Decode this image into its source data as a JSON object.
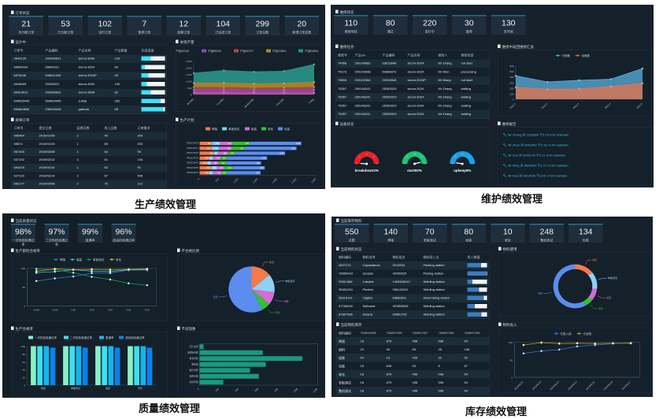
{
  "captions": {
    "production": "生产绩效管理",
    "maintenance": "维护绩效管理",
    "quality": "质量绩效管理",
    "inventory": "库存绩效管理"
  },
  "production": {
    "kpi_title": "订单状态",
    "kpis": [
      {
        "value": "21",
        "label": "未分配订单"
      },
      {
        "value": "53",
        "label": "已分配订单"
      },
      {
        "value": "102",
        "label": "进行订单"
      },
      {
        "value": "7",
        "label": "暂停订单"
      },
      {
        "value": "12",
        "label": "延期订单"
      },
      {
        "value": "104",
        "label": "已完成订单"
      },
      {
        "value": "299",
        "label": "订单总数"
      },
      {
        "value": "20",
        "label": "新增订单总数"
      }
    ],
    "design": {
      "title": "设计中",
      "columns": [
        "订单号",
        "产品编码",
        "产品名称",
        "产品数量",
        "完成进度"
      ],
      "rows": [
        [
          "3644125",
          "200045641",
          "sicmo-3000",
          "100"
        ],
        [
          "65646434",
          "65644221",
          "sicmo-3024",
          "60"
        ],
        [
          "6575446",
          "546541454",
          "sicmo-3024P",
          "40"
        ],
        [
          "6646565",
          "20036521",
          "sicmo-3000",
          "150"
        ],
        [
          "66423612",
          "200365632",
          "sicmo-3008",
          "82"
        ],
        [
          "645665445",
          "654654465",
          "sulthji",
          "362"
        ],
        [
          "654664654",
          "235445445",
          "gatsvds",
          "65"
        ]
      ],
      "progress": [
        0.4,
        0.15,
        0.3,
        0.23,
        0.4,
        0.82,
        0.93
      ]
    },
    "pending": {
      "title": "即将订单",
      "columns": [
        "订单号",
        "提交日期",
        "延期天数",
        "线上品数",
        "订单需求"
      ],
      "rows": [
        [
          "565464",
          "2019/01/05",
          "2",
          "40",
          "200"
        ],
        [
          "65674",
          "2019/01/23",
          "1",
          "65",
          "200"
        ],
        [
          "567445",
          "2019/02/08",
          "1",
          "64",
          "90"
        ],
        [
          "637192",
          "2019/02/12",
          "3",
          "61",
          "154"
        ],
        [
          "654478",
          "2019/01/24",
          "1",
          "62",
          "91"
        ],
        [
          "627192",
          "2019/02/14",
          "2",
          "67",
          "546"
        ],
        [
          "692177",
          "2019/02/08",
          "2",
          "75",
          "113"
        ]
      ]
    },
    "weekly_title": "本周产量",
    "plan_title": "生产计划"
  },
  "maintenance": {
    "kpi_title": "维修状态",
    "kpis": [
      {
        "value": "110",
        "label": "维修项目"
      },
      {
        "value": "80",
        "label": "通过"
      },
      {
        "value": "220",
        "label": "进行中"
      },
      {
        "value": "30",
        "label": "暂停"
      },
      {
        "value": "130",
        "label": "未开始"
      }
    ],
    "tasks": {
      "title": "维修任务",
      "columns": [
        "维修号",
        "产品SN",
        "产品编码",
        "产品名称",
        "维修人",
        "维修状态"
      ],
      "rows": [
        [
          "74068",
          "200149682",
          "63015848",
          "sicom-3024",
          "Mr Zhang",
          "not start"
        ],
        [
          "75173",
          "200143698",
          "64898970",
          "sicom-3024",
          "Mr Wen",
          "processing"
        ],
        [
          "75694",
          "200102364",
          "20315848",
          "sicom-3024P",
          "Mr Wang",
          "not start"
        ],
        [
          "75357",
          "200146241",
          "2526302X",
          "sicom-3024",
          "Mr Zhang",
          "waiting"
        ],
        [
          "75357",
          "200146241",
          "2526302X",
          "sicom-3024",
          "Mr Zhang",
          "waiting"
        ],
        [
          "75357",
          "200146241",
          "2526302X",
          "sicom-3024",
          "Mr Zhang",
          "waiting"
        ],
        [
          "75357",
          "200146241",
          "2526302X",
          "sicom-3024",
          "Mr Zhang",
          "waiting"
        ]
      ]
    },
    "trend_title": "维修中返回维修汇总",
    "equipment_title": "设备状态",
    "report": {
      "title": "维修报告",
      "items": [
        "Mr Zhang 对 2315684 于2.15 9:00 maintain",
        "Mr Zhao 对 6901462 于2.18 11:00 maintain",
        "Mr Sun 对 3026178 于2.21 8:00 maintain",
        "Mr Ming 对 5604623 于2.27 13:00 maintain",
        "Mr Dao 对 3612036 于3.09 17:00 maintain"
      ]
    }
  },
  "quality": {
    "kpi_title": "当前质量状态",
    "kpis": [
      {
        "value": "98%",
        "label": "一次性检验通过率"
      },
      {
        "value": "97%",
        "label": "二次性检验通过率"
      },
      {
        "value": "99%",
        "label": "直通率"
      },
      {
        "value": "96%",
        "label": "成品检验通过率"
      }
    ],
    "line_title": "生产部检合格率",
    "pie_title": "不合格比例",
    "bar_title": "生产合格率",
    "defect_title": "不良现象"
  },
  "inventory": {
    "kpi_title": "当前库存物料",
    "kpis": [
      {
        "value": "550",
        "label": "总数"
      },
      {
        "value": "140",
        "label": "焊接"
      },
      {
        "value": "70",
        "label": "单板测试"
      },
      {
        "value": "80",
        "label": "组装"
      },
      {
        "value": "10",
        "label": "老化"
      },
      {
        "value": "248",
        "label": "整机测试"
      },
      {
        "value": "134",
        "label": "包装"
      }
    ],
    "status": {
      "title": "当前物料状态",
      "columns": [
        "物料编码",
        "物料名称",
        "物料批次",
        "物料投入点",
        "投入数量"
      ],
      "rows": [
        [
          "3607274",
          "Capacitance",
          "3213434",
          "Packing station"
        ],
        [
          "76650443",
          "Sodadc",
          "45789525",
          "Picking station"
        ],
        [
          "32611566",
          "Lotsdds",
          "1463406412",
          "Welding station"
        ],
        [
          "35451254",
          "Pindest",
          "356145112",
          "Welding station"
        ],
        [
          "56315141",
          "Tjdjdso",
          "63689511",
          "Assembling station"
        ],
        [
          "67768246",
          "Sdfmsed",
          "457856525",
          "Welding station"
        ],
        [
          "87867586",
          "Solada",
          "54560725",
          "Welding station"
        ]
      ],
      "progress": [
        0.7,
        0.97,
        0.25,
        0.6,
        0.84,
        0.38,
        0.72
      ]
    },
    "stock": {
      "title": "当前物料库存",
      "columns": [
        "物料编码",
        "784845458",
        "784887455",
        "784847457",
        "784887456",
        "784887455"
      ],
      "rows": [
        [
          "焊接",
          "18",
          "875",
          "458",
          "598",
          "54"
        ],
        [
          "组料",
          "23",
          "45",
          "65",
          "35",
          "108"
        ],
        [
          "组装",
          "54",
          "23",
          "428",
          "32",
          "52"
        ],
        [
          "包装",
          "23",
          "845",
          "43",
          "8",
          "87"
        ],
        [
          "老化",
          "18",
          "875",
          "458",
          "598",
          "54"
        ],
        [
          "单板测试",
          "18",
          "875",
          "458",
          "598",
          "54"
        ],
        [
          "整机测试",
          "18",
          "875",
          "458",
          "598",
          "54"
        ]
      ]
    },
    "usage_title": "物料使用",
    "input_title": "物料投入"
  },
  "colors": {
    "panel_bg": "#16212c",
    "card_bg": "#1f2e3d",
    "card_accent": "#2a6c8e",
    "progress_cyan": "#3fe0f5",
    "progress_blue": "#3b7cc0"
  },
  "chart_data": [
    {
      "type": "area",
      "stacked": true,
      "categories": [
        "Monday",
        "Tuesday",
        "Wednesday",
        "Thursday",
        "Friday"
      ],
      "ylim": [
        0,
        2500
      ],
      "yticks": [
        "0",
        "500",
        "1,000",
        "1,500",
        "2,000",
        "2,500"
      ],
      "legend": "top",
      "series": [
        {
          "name": "产品A0120",
          "color": "#c2509a",
          "values": [
            150,
            160,
            140,
            150,
            130
          ]
        },
        {
          "name": "产品B0203",
          "color": "#8a4cb0",
          "values": [
            200,
            200,
            180,
            190,
            220
          ]
        },
        {
          "name": "产品A0707",
          "color": "#b04a45",
          "values": [
            200,
            180,
            170,
            180,
            200
          ]
        },
        {
          "name": "产品C0604",
          "color": "#a88a28",
          "values": [
            300,
            330,
            310,
            320,
            380
          ]
        },
        {
          "name": "产品D0604",
          "color": "#2a8f86",
          "values": [
            750,
            930,
            900,
            910,
            1320
          ]
        }
      ]
    },
    {
      "type": "bar",
      "orientation": "horizontal",
      "stacked": true,
      "categories": [
        "PM0124670",
        "PM0124671",
        "PM0124672",
        "PM0124673",
        "PM0124674",
        "PM0124675",
        "PM0124676"
      ],
      "xlim": [
        0,
        3000
      ],
      "xticks": [
        "0",
        "500",
        "1,000",
        "1,500",
        "2,000",
        "2,500",
        "3,000"
      ],
      "legend": "top",
      "series": [
        {
          "name": "焊接",
          "color": "#f47a4a",
          "values": [
            320,
            300,
            380,
            250,
            200,
            301,
            249
          ]
        },
        {
          "name": "单板测试",
          "color": "#7ecbf4",
          "values": [
            210,
            200,
            100,
            100,
            100,
            152,
            100
          ]
        },
        {
          "name": "组装",
          "color": "#d66ad6",
          "values": [
            310,
            330,
            250,
            200,
            180,
            182,
            225
          ]
        },
        {
          "name": "老化",
          "color": "#2ec42e",
          "values": [
            455,
            330,
            180,
            154,
            201,
            212,
            126
          ]
        },
        {
          "name": "包装",
          "color": "#5b8def",
          "values": [
            1326,
            1336,
            1290,
            1034,
            900,
            830,
            870
          ]
        }
      ]
    },
    {
      "type": "area",
      "stacked": false,
      "categories": [
        "2019-1",
        "2019-2",
        "2019-3",
        "2019-4",
        "2019-5"
      ],
      "ylim": [
        0,
        600
      ],
      "yticks": [
        "0",
        "100",
        "200",
        "300",
        "400",
        "500",
        "600"
      ],
      "legend": "top",
      "series": [
        {
          "name": "已修数",
          "color": "#5ab0e0",
          "values": [
            420,
            310,
            340,
            360,
            550
          ]
        },
        {
          "name": "待修数",
          "color": "#e8734a",
          "values": [
            215,
            180,
            185,
            230,
            285
          ]
        }
      ]
    },
    {
      "type": "gauge",
      "gauges": [
        {
          "label": "breakdown2%",
          "value": 2,
          "color": "#e8202a"
        },
        {
          "label": "start92%",
          "value": 92,
          "color": "#1ec472"
        },
        {
          "label": "upkeep5%",
          "value": 5,
          "color": "#1aa0e8"
        }
      ]
    },
    {
      "type": "line",
      "categories": [
        "10:00",
        "11:00",
        "1:00",
        "2:00",
        "3:00",
        "4:00",
        "5:00"
      ],
      "ylim": [
        0,
        100
      ],
      "yticks": [
        "0",
        "50",
        "100"
      ],
      "legend": "top",
      "series": [
        {
          "name": "焊接",
          "color": "#2f86d8",
          "values": [
            66,
            73,
            78,
            87,
            87,
            95,
            95
          ]
        },
        {
          "name": "组装",
          "color": "#35c6f0",
          "values": [
            88,
            91,
            96,
            92,
            91,
            96,
            97
          ]
        },
        {
          "name": "单板测试",
          "color": "#1aa06a",
          "values": [
            98,
            96,
            88,
            77,
            70,
            60,
            55
          ]
        },
        {
          "name": "老化",
          "color": "#e4b520",
          "values": [
            92,
            98,
            96,
            97,
            96,
            97,
            98
          ]
        }
      ]
    },
    {
      "type": "pie",
      "slices": [
        {
          "name": "焊接",
          "value": 14,
          "color": "#f47a4a"
        },
        {
          "name": "单板测试",
          "value": 13,
          "color": "#8fd0f6"
        },
        {
          "name": "组装",
          "value": 9,
          "color": "#d66ad6"
        },
        {
          "name": "老化",
          "value": 6,
          "color": "#2ec42e"
        },
        {
          "name": "包装",
          "value": 58,
          "color": "#5b8def"
        }
      ]
    },
    {
      "type": "bar",
      "categories": [
        "焊接",
        "单板测试",
        "组装",
        "老化"
      ],
      "ylim": [
        0,
        100
      ],
      "yticks": [
        "0",
        "20",
        "40",
        "60",
        "80",
        "100"
      ],
      "legend": "top",
      "series": [
        {
          "name": "一次性检验通过率",
          "color": "#86f0c8",
          "values": [
            100,
            100,
            100,
            100
          ]
        },
        {
          "name": "二次性检验通过率",
          "color": "#3ae0f0",
          "values": [
            100,
            100,
            100,
            100
          ]
        },
        {
          "name": "直通率",
          "color": "#14b4f0",
          "values": [
            100,
            100,
            100,
            100
          ]
        },
        {
          "name": "成品检验通过率",
          "color": "#0a82e8",
          "values": [
            96,
            96,
            96,
            96
          ]
        }
      ]
    },
    {
      "type": "bar",
      "orientation": "horizontal",
      "categories": [
        "芯片虚焊",
        "电源板问题",
        "电容问题",
        "散热器",
        "螺丝问题",
        "电阻问题",
        "其他问题"
      ],
      "values": [
        40,
        640,
        1040,
        670,
        510,
        600,
        240
      ],
      "color": "#1a9a80",
      "xlim": [
        0,
        1200
      ],
      "xticks": [
        "0",
        "200",
        "400",
        "600",
        "800",
        "1000",
        "1200"
      ]
    },
    {
      "type": "pie",
      "donut": true,
      "slices": [
        {
          "name": "焊接",
          "value": 14,
          "color": "#f47a4a"
        },
        {
          "name": "单板测试",
          "value": 13,
          "color": "#8fd0f6"
        },
        {
          "name": "组装",
          "value": 9,
          "color": "#d66ad6"
        },
        {
          "name": "老化",
          "value": 6,
          "color": "#2ec42e"
        },
        {
          "name": "包装",
          "value": 58,
          "color": "#5b8def"
        }
      ]
    },
    {
      "type": "line",
      "categories": [
        "2019/02/11",
        "2019/02/12",
        "2019/02/13",
        "2019/02/14",
        "2019/02/15",
        "2019/02/16",
        "2019/02/17"
      ],
      "ylim": [
        0,
        100
      ],
      "yticks": [
        "0",
        "50",
        "100"
      ],
      "legend": "top",
      "series": [
        {
          "name": "已投入线",
          "color": "#2f7fcf",
          "values": [
            68,
            75,
            79,
            88,
            92,
            96,
            98
          ]
        },
        {
          "name": "计划线",
          "color": "#c9a227",
          "values": [
            92,
            99,
            96,
            97,
            96,
            97,
            97
          ]
        }
      ]
    }
  ]
}
